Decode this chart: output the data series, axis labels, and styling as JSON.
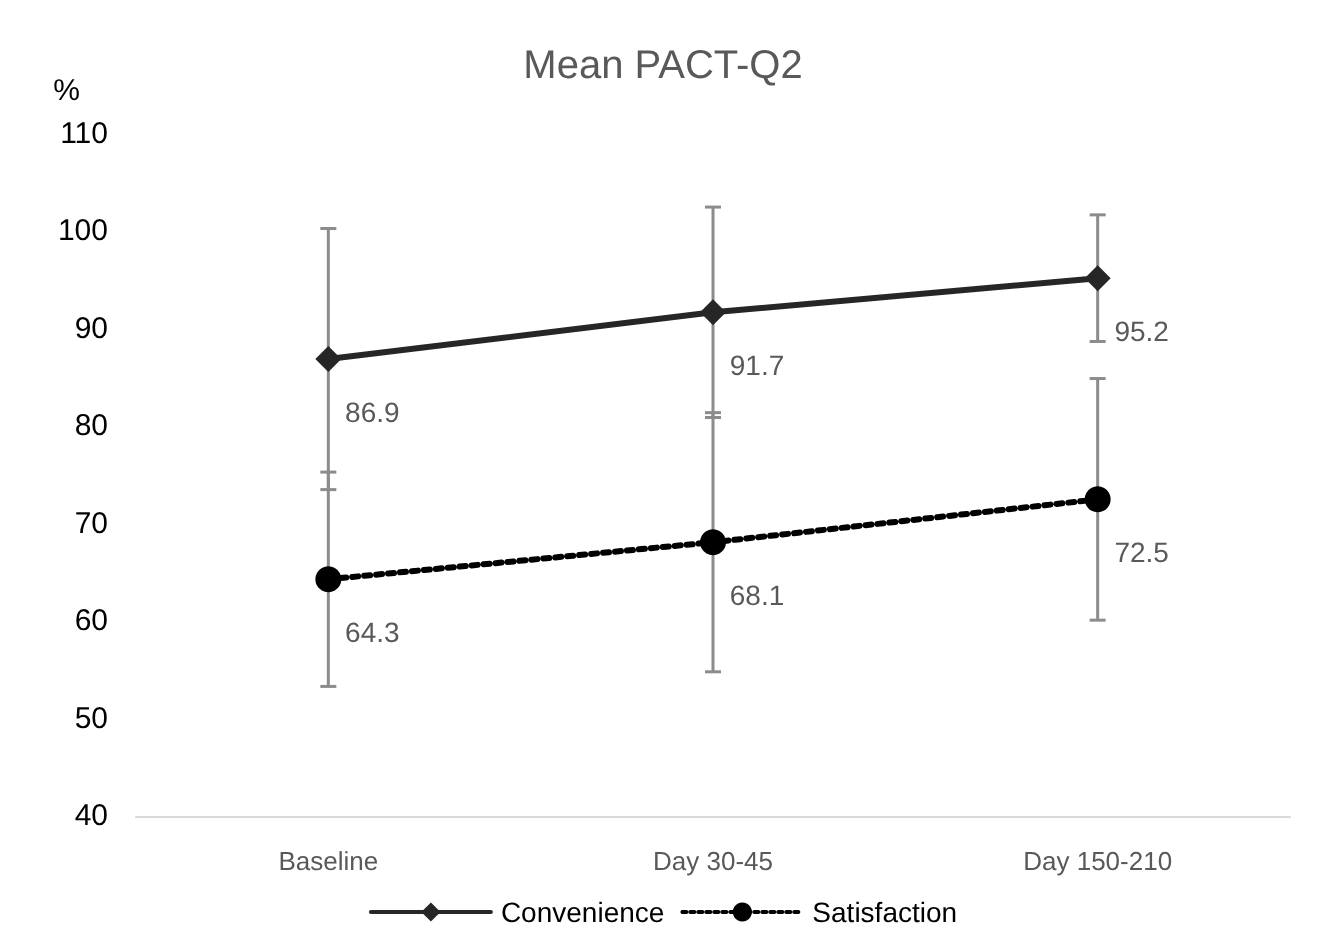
{
  "chart_data": {
    "type": "line",
    "title": "Mean PACT-Q2",
    "ylabel": "%",
    "categories": [
      "Baseline",
      "Day 30-45",
      "Day 150-210"
    ],
    "series": [
      {
        "name": "Convenience",
        "color": "#262626",
        "values": [
          86.9,
          91.7,
          95.2
        ],
        "errors": [
          13.4,
          10.8,
          6.5
        ],
        "marker": "diamond",
        "line_style": "solid"
      },
      {
        "name": "Satisfaction",
        "color": "#000000",
        "values": [
          64.3,
          68.1,
          72.5
        ],
        "errors": [
          11,
          13.3,
          12.4
        ],
        "marker": "circle",
        "line_style": "dotted"
      }
    ],
    "ylim": [
      40,
      110
    ],
    "yticks": [
      40,
      50,
      60,
      70,
      80,
      90,
      100,
      110
    ],
    "grid": false,
    "legend": "bottom",
    "data_labels": true
  }
}
